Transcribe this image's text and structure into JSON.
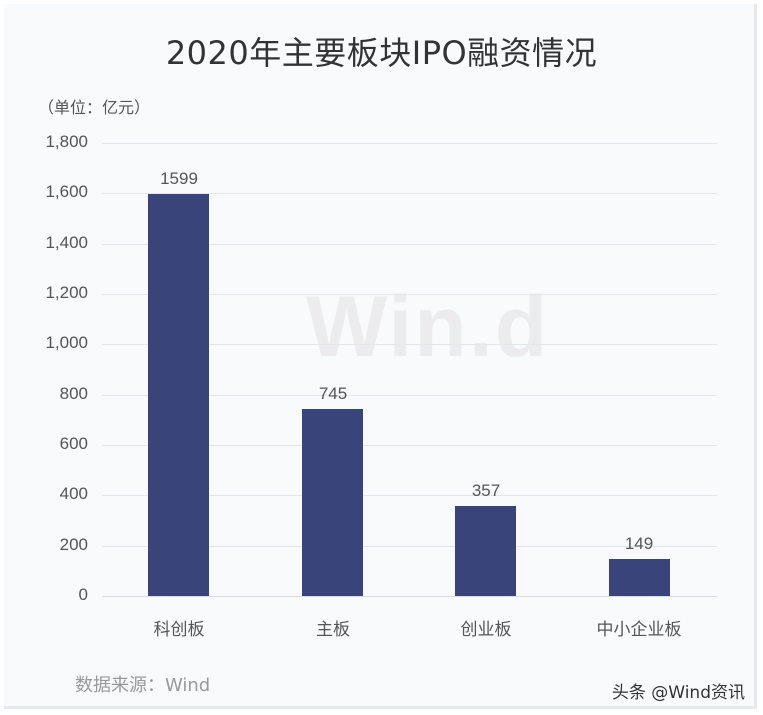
{
  "chart_data": {
    "type": "bar",
    "title": "2020年主要板块IPO融资情况",
    "subtitle": "（单位：亿元）",
    "xlabel": "",
    "ylabel": "亿元",
    "categories": [
      "科创板",
      "主板",
      "创业板",
      "中小企业板"
    ],
    "values": [
      1599,
      745,
      357,
      149
    ],
    "value_labels": [
      "1599",
      "745",
      "357",
      "149"
    ],
    "yticks": [
      "0",
      "200",
      "400",
      "600",
      "800",
      "1,000",
      "1,200",
      "1,400",
      "1,600",
      "1,800"
    ],
    "ylim": [
      0,
      1800
    ],
    "grid": true,
    "legend": "none",
    "bar_color": "#38447a"
  },
  "header": {
    "title": "2020年主要板块IPO融资情况",
    "unit": "（单位：亿元）"
  },
  "watermark": "Win.d",
  "footer": {
    "source": "数据来源：Wind",
    "credit": "头条 @Wind资讯"
  }
}
